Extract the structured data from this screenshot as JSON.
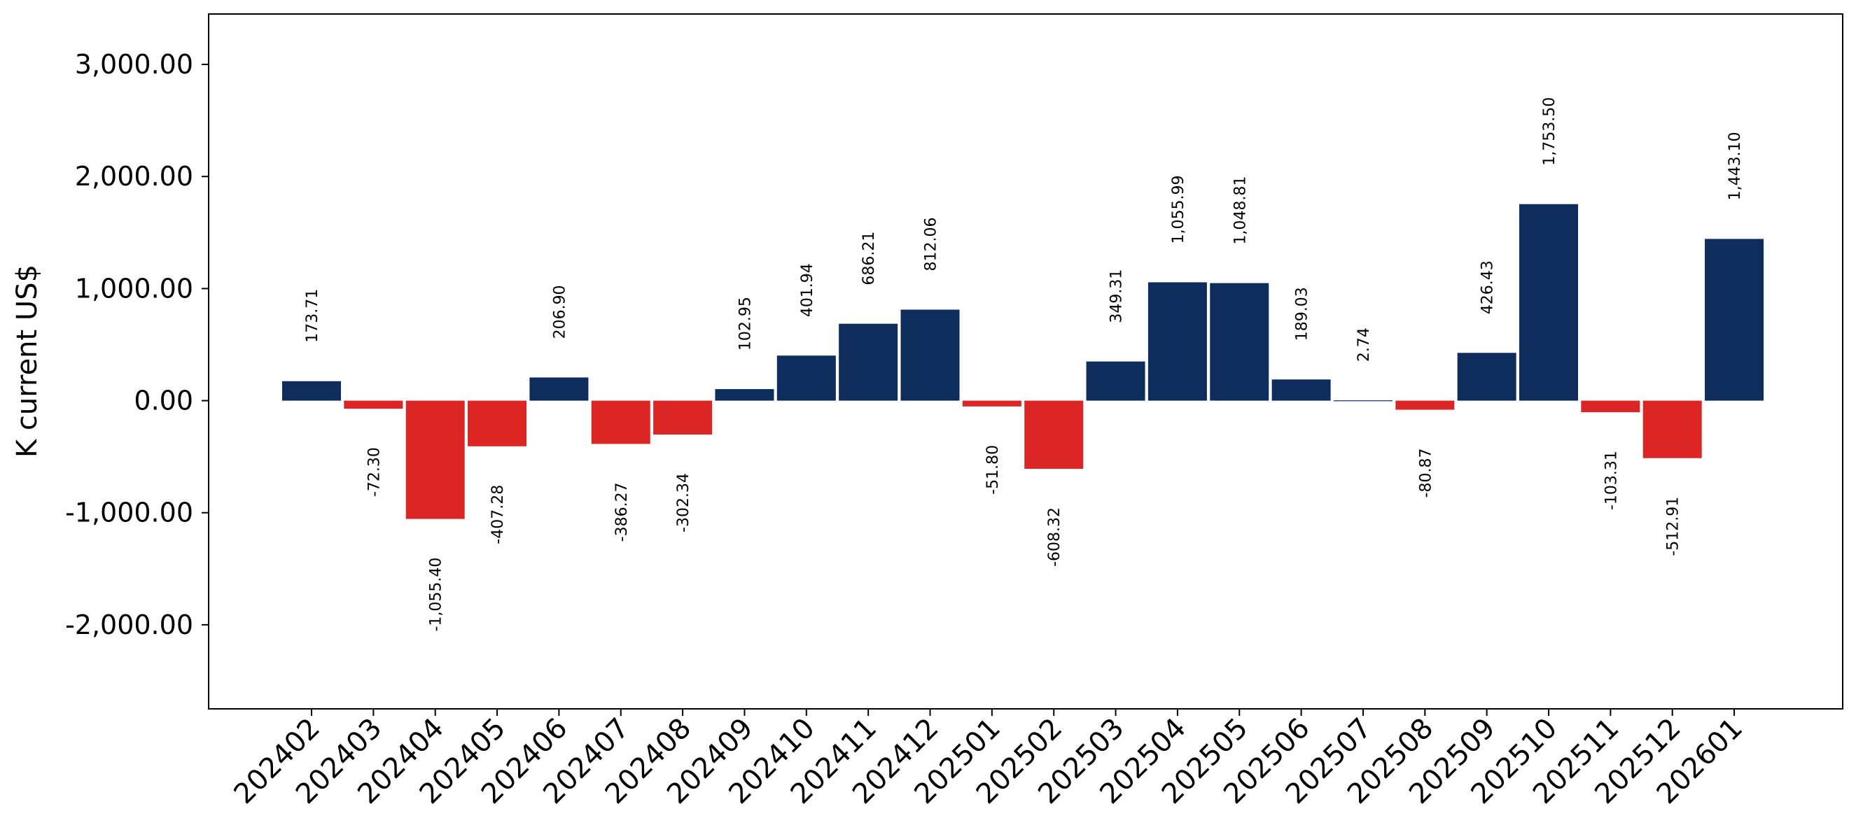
{
  "chart_data": {
    "type": "bar",
    "ylabel": "K current US$",
    "ylim": [
      -2750,
      3450
    ],
    "yticks": [
      -2000,
      -1000,
      0,
      1000,
      2000,
      3000
    ],
    "ytick_labels": [
      "-2,000.00",
      "-1,000.00",
      "0.00",
      "1,000.00",
      "2,000.00",
      "3,000.00"
    ],
    "categories": [
      "202402",
      "202403",
      "202404",
      "202405",
      "202406",
      "202407",
      "202408",
      "202409",
      "202410",
      "202411",
      "202412",
      "202501",
      "202502",
      "202503",
      "202504",
      "202505",
      "202506",
      "202507",
      "202508",
      "202509",
      "202510",
      "202511",
      "202512",
      "202601"
    ],
    "values": [
      173.71,
      -72.3,
      -1055.4,
      -407.28,
      206.9,
      -386.27,
      -302.34,
      102.95,
      401.94,
      686.21,
      812.06,
      -51.8,
      -608.32,
      349.31,
      1055.99,
      1048.81,
      189.03,
      2.74,
      -80.87,
      426.43,
      1753.5,
      -103.31,
      -512.91,
      1443.1
    ],
    "value_labels": [
      "173.71",
      "-72.30",
      "-1,055.40",
      "-407.28",
      "206.90",
      "-386.27",
      "-302.34",
      "102.95",
      "401.94",
      "686.21",
      "812.06",
      "-51.80",
      "-608.32",
      "349.31",
      "1,055.99",
      "1,048.81",
      "189.03",
      "2.74",
      "-80.87",
      "426.43",
      "1,753.50",
      "-103.31",
      "-512.91",
      "1,443.10"
    ],
    "colors": {
      "positive": "#0e2d5c",
      "negative": "#dc2626"
    },
    "grid": false,
    "legend": "none"
  }
}
